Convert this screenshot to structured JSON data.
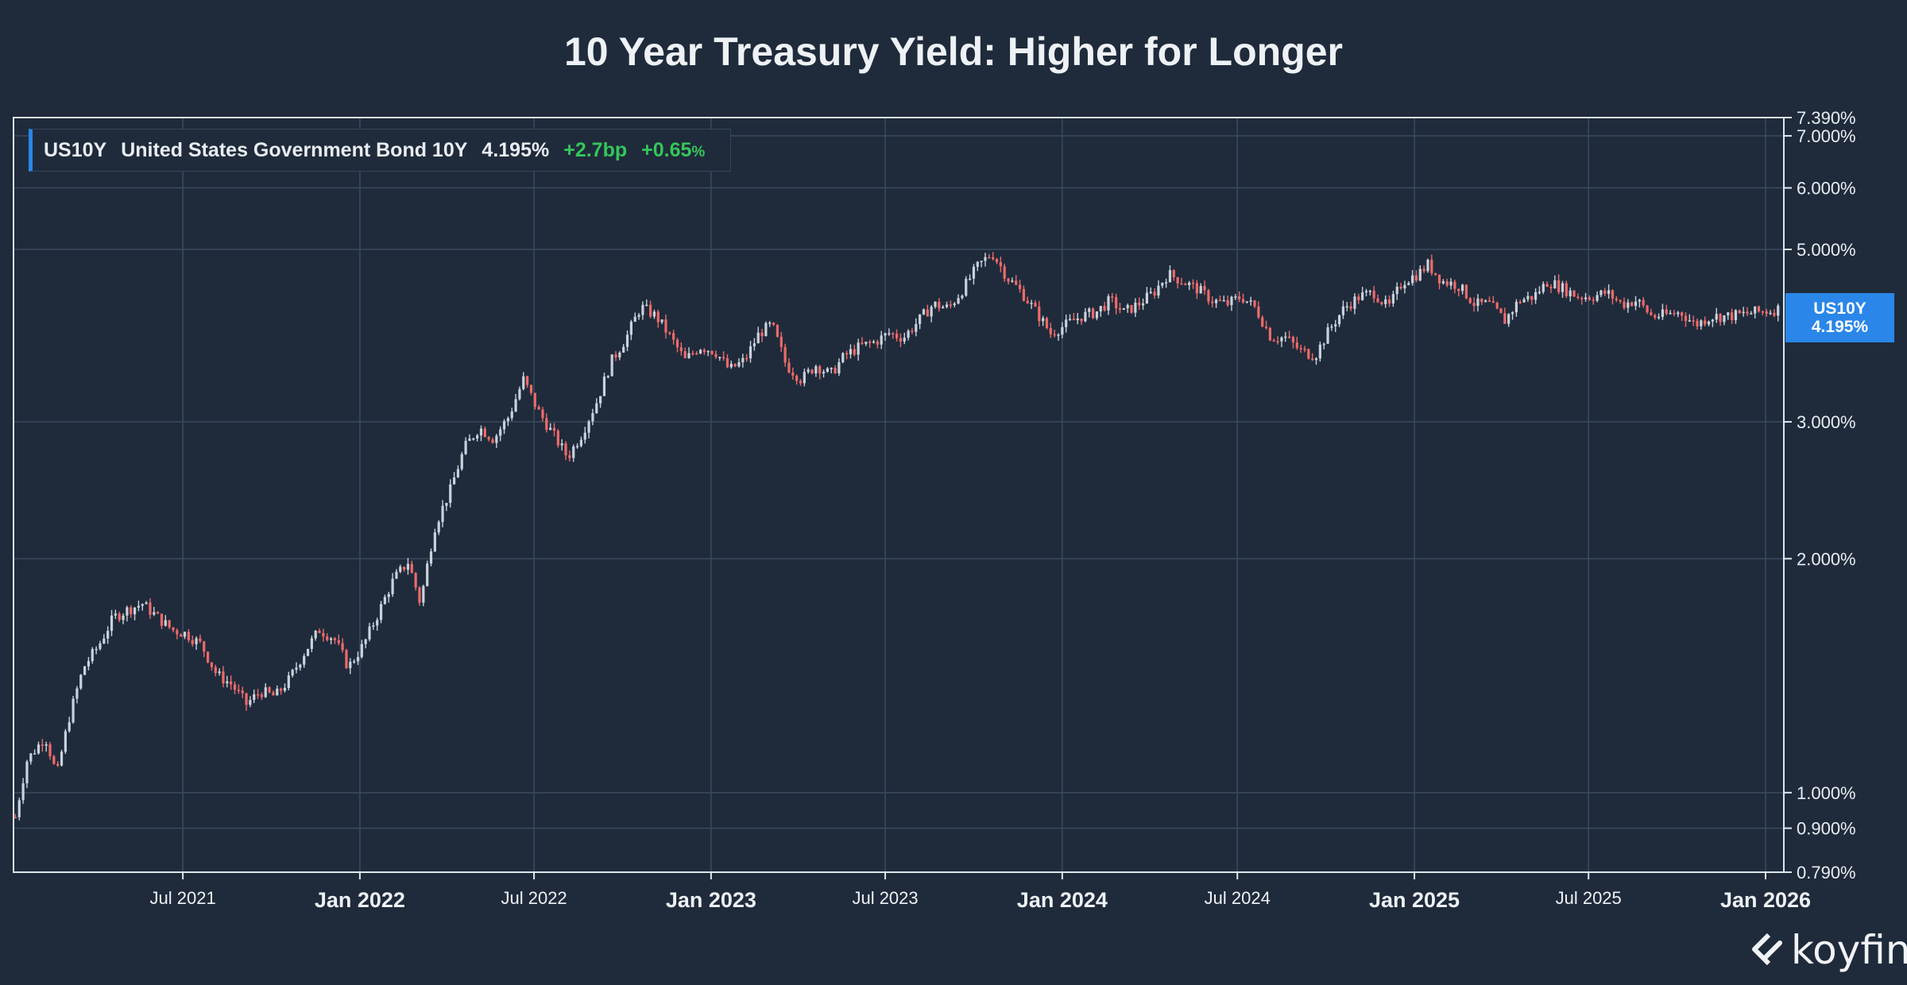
{
  "chart_data": {
    "type": "candlestick",
    "title": "10 Year Treasury Yield: Higher for Longer",
    "scale": "log",
    "ylim": [
      0.79,
      7.39
    ],
    "y_ticks": [
      "7.390%",
      "7.000%",
      "6.000%",
      "5.000%",
      "3.000%",
      "2.000%",
      "1.000%",
      "0.900%",
      "0.790%"
    ],
    "y_tick_values": [
      7.39,
      7.0,
      6.0,
      5.0,
      3.0,
      2.0,
      1.0,
      0.9,
      0.79
    ],
    "x_ticks": [
      {
        "label": "Jul 2021",
        "date": "2021-07-01",
        "major": false
      },
      {
        "label": "Jan 2022",
        "date": "2022-01-01",
        "major": true
      },
      {
        "label": "Jul 2022",
        "date": "2022-07-01",
        "major": false
      },
      {
        "label": "Jan 2023",
        "date": "2023-01-01",
        "major": true
      },
      {
        "label": "Jul 2023",
        "date": "2023-07-01",
        "major": false
      },
      {
        "label": "Jan 2024",
        "date": "2024-01-01",
        "major": true
      },
      {
        "label": "Jul 2024",
        "date": "2024-07-01",
        "major": false
      },
      {
        "label": "Jan 2025",
        "date": "2025-01-01",
        "major": true
      },
      {
        "label": "Jul 2025",
        "date": "2025-07-01",
        "major": false
      },
      {
        "label": "Jan 2026",
        "date": "2026-01-01",
        "major": true
      }
    ],
    "x_range": [
      "2021-01-06",
      "2026-01-20"
    ],
    "grid": true,
    "up_color": "#c9d2dc",
    "down_color": "#ee6a6a",
    "series": [
      {
        "name": "US10Y",
        "points": [
          [
            "2021-01-08",
            0.93
          ],
          [
            "2021-01-20",
            1.1
          ],
          [
            "2021-02-08",
            1.18
          ],
          [
            "2021-02-20",
            1.05
          ],
          [
            "2021-03-05",
            1.25
          ],
          [
            "2021-03-20",
            1.45
          ],
          [
            "2021-04-05",
            1.55
          ],
          [
            "2021-04-20",
            1.68
          ],
          [
            "2021-05-05",
            1.72
          ],
          [
            "2021-05-20",
            1.75
          ],
          [
            "2021-06-05",
            1.68
          ],
          [
            "2021-06-20",
            1.62
          ],
          [
            "2021-07-05",
            1.6
          ],
          [
            "2021-07-20",
            1.55
          ],
          [
            "2021-08-05",
            1.42
          ],
          [
            "2021-08-20",
            1.38
          ],
          [
            "2021-09-05",
            1.3
          ],
          [
            "2021-09-20",
            1.35
          ],
          [
            "2021-10-05",
            1.33
          ],
          [
            "2021-10-20",
            1.4
          ],
          [
            "2021-11-05",
            1.52
          ],
          [
            "2021-11-20",
            1.62
          ],
          [
            "2021-12-05",
            1.58
          ],
          [
            "2021-12-20",
            1.45
          ],
          [
            "2022-01-05",
            1.55
          ],
          [
            "2022-01-20",
            1.7
          ],
          [
            "2022-02-05",
            1.88
          ],
          [
            "2022-02-20",
            1.98
          ],
          [
            "2022-03-05",
            1.75
          ],
          [
            "2022-03-20",
            2.2
          ],
          [
            "2022-04-05",
            2.45
          ],
          [
            "2022-04-20",
            2.78
          ],
          [
            "2022-05-05",
            2.95
          ],
          [
            "2022-05-20",
            2.85
          ],
          [
            "2022-06-05",
            3.05
          ],
          [
            "2022-06-20",
            3.4
          ],
          [
            "2022-07-05",
            3.1
          ],
          [
            "2022-07-20",
            2.9
          ],
          [
            "2022-08-05",
            2.7
          ],
          [
            "2022-08-20",
            2.9
          ],
          [
            "2022-09-05",
            3.2
          ],
          [
            "2022-09-20",
            3.6
          ],
          [
            "2022-10-05",
            3.85
          ],
          [
            "2022-10-20",
            4.22
          ],
          [
            "2022-11-05",
            4.1
          ],
          [
            "2022-11-20",
            3.85
          ],
          [
            "2022-12-05",
            3.6
          ],
          [
            "2022-12-20",
            3.75
          ],
          [
            "2023-01-05",
            3.7
          ],
          [
            "2023-01-20",
            3.5
          ],
          [
            "2023-02-05",
            3.6
          ],
          [
            "2023-02-20",
            3.9
          ],
          [
            "2023-03-05",
            4.0
          ],
          [
            "2023-03-20",
            3.55
          ],
          [
            "2023-04-05",
            3.4
          ],
          [
            "2023-04-20",
            3.55
          ],
          [
            "2023-05-05",
            3.45
          ],
          [
            "2023-05-20",
            3.65
          ],
          [
            "2023-06-05",
            3.75
          ],
          [
            "2023-06-20",
            3.8
          ],
          [
            "2023-07-05",
            3.9
          ],
          [
            "2023-07-20",
            3.85
          ],
          [
            "2023-08-05",
            4.05
          ],
          [
            "2023-08-20",
            4.25
          ],
          [
            "2023-09-05",
            4.2
          ],
          [
            "2023-09-20",
            4.45
          ],
          [
            "2023-10-05",
            4.75
          ],
          [
            "2023-10-20",
            4.95
          ],
          [
            "2023-11-05",
            4.6
          ],
          [
            "2023-11-20",
            4.4
          ],
          [
            "2023-12-05",
            4.15
          ],
          [
            "2023-12-20",
            3.9
          ],
          [
            "2024-01-05",
            4.0
          ],
          [
            "2024-01-20",
            4.1
          ],
          [
            "2024-02-05",
            4.15
          ],
          [
            "2024-02-20",
            4.3
          ],
          [
            "2024-03-05",
            4.15
          ],
          [
            "2024-03-20",
            4.25
          ],
          [
            "2024-04-05",
            4.4
          ],
          [
            "2024-04-20",
            4.65
          ],
          [
            "2024-05-05",
            4.55
          ],
          [
            "2024-05-20",
            4.45
          ],
          [
            "2024-06-05",
            4.3
          ],
          [
            "2024-06-20",
            4.25
          ],
          [
            "2024-07-05",
            4.35
          ],
          [
            "2024-07-20",
            4.2
          ],
          [
            "2024-08-05",
            3.85
          ],
          [
            "2024-08-20",
            3.85
          ],
          [
            "2024-09-05",
            3.7
          ],
          [
            "2024-09-20",
            3.65
          ],
          [
            "2024-10-05",
            3.95
          ],
          [
            "2024-10-20",
            4.2
          ],
          [
            "2024-11-05",
            4.35
          ],
          [
            "2024-11-20",
            4.4
          ],
          [
            "2024-12-05",
            4.2
          ],
          [
            "2024-12-20",
            4.55
          ],
          [
            "2025-01-05",
            4.65
          ],
          [
            "2025-01-15",
            4.78
          ],
          [
            "2025-01-30",
            4.55
          ],
          [
            "2025-02-15",
            4.5
          ],
          [
            "2025-03-05",
            4.25
          ],
          [
            "2025-03-20",
            4.25
          ],
          [
            "2025-04-05",
            4.05
          ],
          [
            "2025-04-20",
            4.3
          ],
          [
            "2025-05-05",
            4.35
          ],
          [
            "2025-05-20",
            4.55
          ],
          [
            "2025-06-05",
            4.45
          ],
          [
            "2025-06-20",
            4.35
          ],
          [
            "2025-07-05",
            4.35
          ],
          [
            "2025-07-20",
            4.4
          ],
          [
            "2025-08-05",
            4.25
          ],
          [
            "2025-08-20",
            4.3
          ],
          [
            "2025-09-05",
            4.1
          ],
          [
            "2025-09-20",
            4.12
          ],
          [
            "2025-10-05",
            4.15
          ],
          [
            "2025-10-20",
            4.0
          ],
          [
            "2025-11-05",
            4.1
          ],
          [
            "2025-11-20",
            4.1
          ],
          [
            "2025-12-05",
            4.12
          ],
          [
            "2025-12-20",
            4.15
          ],
          [
            "2026-01-05",
            4.17
          ],
          [
            "2026-01-16",
            4.195
          ]
        ]
      }
    ]
  },
  "legend": {
    "ticker": "US10Y",
    "name": "United States Government Bond 10Y",
    "value": "4.195%",
    "change_bp": "+2.7bp",
    "change_pct_num": "+0.65",
    "change_pct_sign": "%",
    "accent_color": "#2a86e8",
    "positive_color": "#34c759"
  },
  "badge": {
    "ticker": "US10Y",
    "value": "4.195%",
    "color": "#2a86e8"
  },
  "brand": {
    "name": "koyfin",
    "icon": "koyfin-logo-icon"
  }
}
